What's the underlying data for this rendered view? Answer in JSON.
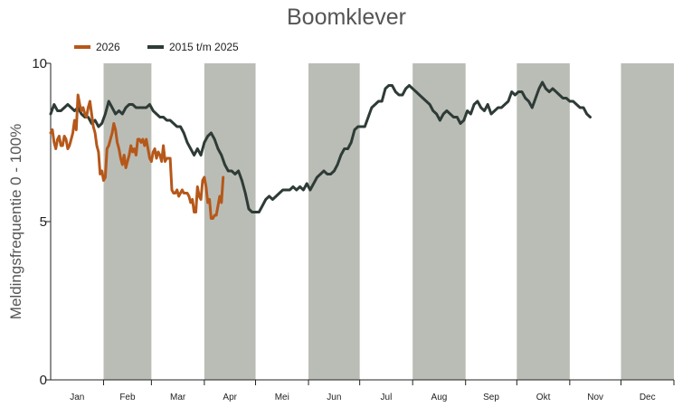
{
  "chart_data": {
    "type": "line",
    "title": "Boomklever",
    "ylabel": "Meldingsfrequentie 0 - 100%",
    "xlabel": "",
    "ylim": [
      0,
      10
    ],
    "yticks": [
      0,
      5,
      10
    ],
    "xlim": [
      0,
      365
    ],
    "months": [
      "Jan",
      "Feb",
      "Mar",
      "Apr",
      "Mei",
      "Jun",
      "Jul",
      "Aug",
      "Sep",
      "Okt",
      "Nov",
      "Dec"
    ],
    "shaded_months": [
      "Feb",
      "Apr",
      "Jun",
      "Aug",
      "Okt",
      "Dec"
    ],
    "shade_color": "#babdb6",
    "legend_position": "top-left",
    "grid": false,
    "series": [
      {
        "name": "2026",
        "color": "#b5581a",
        "points": [
          [
            0,
            7.8
          ],
          [
            1,
            7.9
          ],
          [
            2,
            7.5
          ],
          [
            3,
            7.3
          ],
          [
            4,
            7.6
          ],
          [
            5,
            7.7
          ],
          [
            6,
            7.4
          ],
          [
            7,
            7.4
          ],
          [
            8,
            7.7
          ],
          [
            9,
            7.6
          ],
          [
            10,
            7.3
          ],
          [
            11,
            7.4
          ],
          [
            12,
            7.6
          ],
          [
            13,
            7.8
          ],
          [
            14,
            8.2
          ],
          [
            15,
            7.9
          ],
          [
            16,
            9.0
          ],
          [
            17,
            8.7
          ],
          [
            18,
            8.5
          ],
          [
            19,
            8.6
          ],
          [
            20,
            8.4
          ],
          [
            21,
            8.3
          ],
          [
            22,
            8.6
          ],
          [
            23,
            8.8
          ],
          [
            24,
            8.4
          ],
          [
            25,
            8.0
          ],
          [
            26,
            7.8
          ],
          [
            27,
            7.4
          ],
          [
            28,
            7.2
          ],
          [
            29,
            6.5
          ],
          [
            30,
            6.6
          ],
          [
            31,
            6.3
          ],
          [
            32,
            6.4
          ],
          [
            33,
            7.3
          ],
          [
            34,
            7.4
          ],
          [
            35,
            7.6
          ],
          [
            36,
            7.8
          ],
          [
            37,
            8.1
          ],
          [
            38,
            7.9
          ],
          [
            39,
            7.5
          ],
          [
            40,
            7.3
          ],
          [
            41,
            7.0
          ],
          [
            42,
            6.8
          ],
          [
            43,
            7.1
          ],
          [
            44,
            6.7
          ],
          [
            45,
            6.9
          ],
          [
            46,
            7.1
          ],
          [
            47,
            7.4
          ],
          [
            48,
            7.2
          ],
          [
            49,
            7.3
          ],
          [
            50,
            7.1
          ],
          [
            51,
            7.6
          ],
          [
            52,
            7.6
          ],
          [
            53,
            7.5
          ],
          [
            54,
            7.6
          ],
          [
            55,
            7.4
          ],
          [
            56,
            7.6
          ],
          [
            57,
            7.3
          ],
          [
            58,
            7.0
          ],
          [
            59,
            6.9
          ],
          [
            60,
            7.2
          ],
          [
            61,
            7.3
          ],
          [
            62,
            7.0
          ],
          [
            63,
            7.2
          ],
          [
            64,
            7.1
          ],
          [
            65,
            6.9
          ],
          [
            66,
            7.4
          ],
          [
            67,
            6.9
          ],
          [
            68,
            7.0
          ],
          [
            69,
            7.0
          ],
          [
            70,
            7.0
          ],
          [
            71,
            6.0
          ],
          [
            72,
            5.9
          ],
          [
            73,
            5.9
          ],
          [
            74,
            6.0
          ],
          [
            75,
            5.8
          ],
          [
            76,
            5.9
          ],
          [
            77,
            6.0
          ],
          [
            78,
            5.9
          ],
          [
            79,
            5.9
          ],
          [
            80,
            5.9
          ],
          [
            81,
            5.8
          ],
          [
            82,
            5.6
          ],
          [
            83,
            5.7
          ],
          [
            84,
            5.3
          ],
          [
            85,
            5.3
          ],
          [
            86,
            6.1
          ],
          [
            87,
            5.8
          ],
          [
            88,
            5.7
          ],
          [
            89,
            6.3
          ],
          [
            90,
            6.4
          ],
          [
            91,
            6.1
          ],
          [
            92,
            5.6
          ],
          [
            93,
            5.7
          ],
          [
            94,
            5.1
          ],
          [
            95,
            5.1
          ],
          [
            96,
            5.2
          ],
          [
            97,
            5.2
          ],
          [
            98,
            5.5
          ],
          [
            99,
            5.8
          ],
          [
            100,
            5.6
          ],
          [
            101,
            6.4
          ]
        ]
      },
      {
        "name": "2015 t/m 2025",
        "color": "#2e3b36",
        "points": [
          [
            0,
            8.4
          ],
          [
            2,
            8.7
          ],
          [
            4,
            8.5
          ],
          [
            6,
            8.5
          ],
          [
            8,
            8.6
          ],
          [
            10,
            8.7
          ],
          [
            12,
            8.6
          ],
          [
            14,
            8.5
          ],
          [
            16,
            8.6
          ],
          [
            18,
            8.4
          ],
          [
            20,
            8.3
          ],
          [
            22,
            8.3
          ],
          [
            24,
            8.1
          ],
          [
            26,
            8.2
          ],
          [
            28,
            8.0
          ],
          [
            30,
            8.1
          ],
          [
            32,
            8.4
          ],
          [
            34,
            8.8
          ],
          [
            36,
            8.6
          ],
          [
            38,
            8.4
          ],
          [
            40,
            8.5
          ],
          [
            42,
            8.4
          ],
          [
            44,
            8.6
          ],
          [
            46,
            8.7
          ],
          [
            48,
            8.7
          ],
          [
            50,
            8.6
          ],
          [
            52,
            8.6
          ],
          [
            54,
            8.6
          ],
          [
            56,
            8.6
          ],
          [
            58,
            8.7
          ],
          [
            60,
            8.5
          ],
          [
            62,
            8.4
          ],
          [
            64,
            8.3
          ],
          [
            66,
            8.3
          ],
          [
            68,
            8.2
          ],
          [
            70,
            8.2
          ],
          [
            72,
            8.1
          ],
          [
            74,
            8.0
          ],
          [
            76,
            8.0
          ],
          [
            78,
            7.8
          ],
          [
            80,
            7.5
          ],
          [
            82,
            7.3
          ],
          [
            84,
            7.1
          ],
          [
            86,
            7.3
          ],
          [
            88,
            7.1
          ],
          [
            90,
            7.5
          ],
          [
            92,
            7.7
          ],
          [
            94,
            7.8
          ],
          [
            96,
            7.6
          ],
          [
            98,
            7.3
          ],
          [
            100,
            7.1
          ],
          [
            102,
            6.8
          ],
          [
            104,
            6.6
          ],
          [
            106,
            6.6
          ],
          [
            108,
            6.5
          ],
          [
            110,
            6.6
          ],
          [
            112,
            6.3
          ],
          [
            114,
            5.9
          ],
          [
            116,
            5.4
          ],
          [
            118,
            5.3
          ],
          [
            120,
            5.3
          ],
          [
            122,
            5.3
          ],
          [
            124,
            5.5
          ],
          [
            126,
            5.7
          ],
          [
            128,
            5.8
          ],
          [
            130,
            5.7
          ],
          [
            132,
            5.8
          ],
          [
            134,
            5.9
          ],
          [
            136,
            6.0
          ],
          [
            138,
            6.0
          ],
          [
            140,
            6.0
          ],
          [
            142,
            6.1
          ],
          [
            144,
            6.0
          ],
          [
            146,
            6.1
          ],
          [
            148,
            6.0
          ],
          [
            150,
            6.2
          ],
          [
            152,
            6.0
          ],
          [
            154,
            6.2
          ],
          [
            156,
            6.4
          ],
          [
            158,
            6.5
          ],
          [
            160,
            6.6
          ],
          [
            162,
            6.5
          ],
          [
            164,
            6.5
          ],
          [
            166,
            6.6
          ],
          [
            168,
            6.8
          ],
          [
            170,
            7.1
          ],
          [
            172,
            7.3
          ],
          [
            174,
            7.3
          ],
          [
            176,
            7.5
          ],
          [
            178,
            7.9
          ],
          [
            180,
            8.0
          ],
          [
            182,
            8.0
          ],
          [
            184,
            8.0
          ],
          [
            186,
            8.3
          ],
          [
            188,
            8.6
          ],
          [
            190,
            8.7
          ],
          [
            192,
            8.8
          ],
          [
            194,
            8.8
          ],
          [
            196,
            9.2
          ],
          [
            198,
            9.3
          ],
          [
            200,
            9.3
          ],
          [
            202,
            9.1
          ],
          [
            204,
            9.0
          ],
          [
            206,
            9.0
          ],
          [
            208,
            9.2
          ],
          [
            210,
            9.3
          ],
          [
            212,
            9.2
          ],
          [
            214,
            9.1
          ],
          [
            216,
            9.0
          ],
          [
            218,
            8.9
          ],
          [
            220,
            8.8
          ],
          [
            222,
            8.7
          ],
          [
            224,
            8.5
          ],
          [
            226,
            8.4
          ],
          [
            228,
            8.2
          ],
          [
            230,
            8.4
          ],
          [
            232,
            8.5
          ],
          [
            234,
            8.4
          ],
          [
            236,
            8.3
          ],
          [
            238,
            8.3
          ],
          [
            240,
            8.1
          ],
          [
            242,
            8.2
          ],
          [
            244,
            8.5
          ],
          [
            246,
            8.4
          ],
          [
            248,
            8.7
          ],
          [
            250,
            8.8
          ],
          [
            252,
            8.6
          ],
          [
            254,
            8.5
          ],
          [
            256,
            8.7
          ],
          [
            258,
            8.4
          ],
          [
            260,
            8.5
          ],
          [
            262,
            8.6
          ],
          [
            264,
            8.6
          ],
          [
            266,
            8.7
          ],
          [
            268,
            8.8
          ],
          [
            270,
            9.1
          ],
          [
            272,
            9.0
          ],
          [
            274,
            9.1
          ],
          [
            276,
            9.1
          ],
          [
            278,
            8.9
          ],
          [
            280,
            8.8
          ],
          [
            282,
            8.6
          ],
          [
            284,
            8.9
          ],
          [
            286,
            9.2
          ],
          [
            288,
            9.4
          ],
          [
            290,
            9.2
          ],
          [
            292,
            9.1
          ],
          [
            294,
            9.2
          ],
          [
            296,
            9.1
          ],
          [
            298,
            9.0
          ],
          [
            300,
            8.9
          ],
          [
            302,
            8.9
          ],
          [
            304,
            8.8
          ],
          [
            306,
            8.8
          ],
          [
            308,
            8.7
          ],
          [
            310,
            8.6
          ],
          [
            312,
            8.6
          ],
          [
            314,
            8.4
          ],
          [
            316,
            8.3
          ]
        ]
      }
    ]
  }
}
